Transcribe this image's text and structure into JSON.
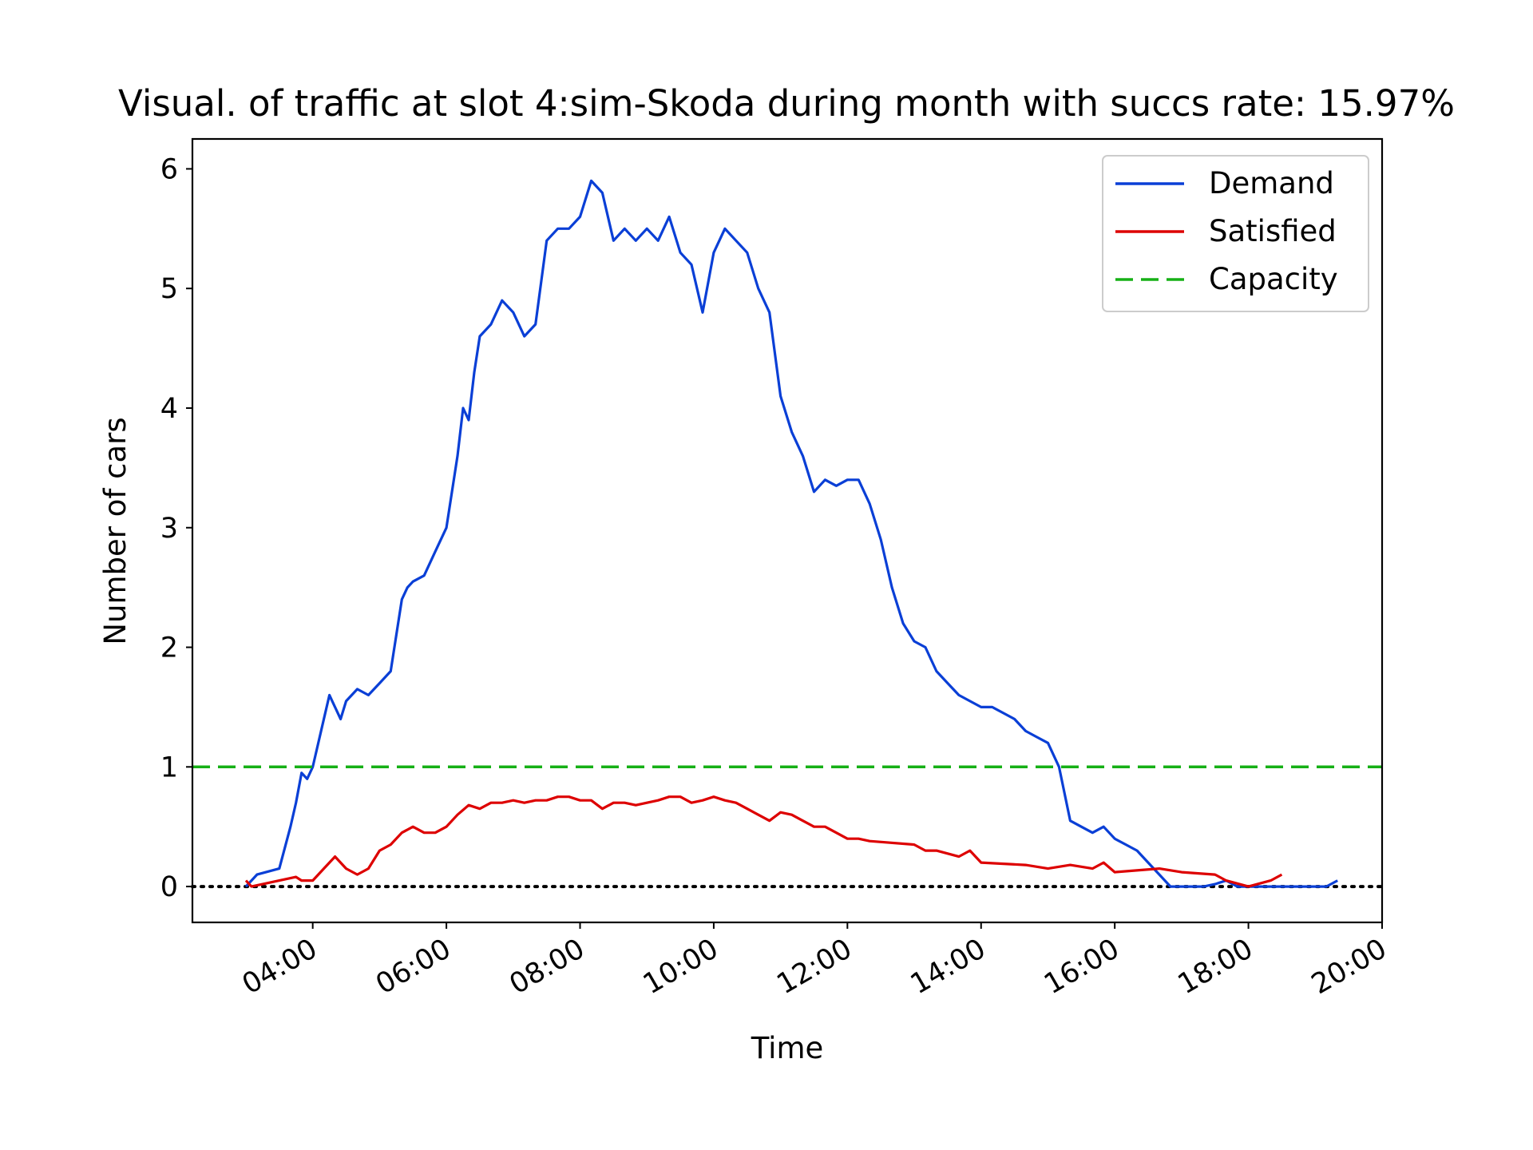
{
  "chart_data": {
    "type": "line",
    "title": "Visual. of traffic at slot 4:sim-Skoda during month with succs rate: 15.97%",
    "xlabel": "Time",
    "ylabel": "Number of cars",
    "x_ticks": [
      "04:00",
      "06:00",
      "08:00",
      "10:00",
      "12:00",
      "14:00",
      "16:00",
      "18:00",
      "20:00"
    ],
    "y_ticks": [
      0,
      1,
      2,
      3,
      4,
      5,
      6
    ],
    "xlim": [
      "02:12",
      "20:00"
    ],
    "ylim": [
      -0.3,
      6.25
    ],
    "grid": false,
    "legend_position": "upper right",
    "series": [
      {
        "name": "Demand",
        "color": "#0a3fd6",
        "style": "solid",
        "x": [
          "03:00",
          "03:10",
          "03:30",
          "03:40",
          "03:45",
          "03:50",
          "03:55",
          "04:00",
          "04:10",
          "04:15",
          "04:20",
          "04:25",
          "04:30",
          "04:40",
          "04:50",
          "05:00",
          "05:10",
          "05:20",
          "05:25",
          "05:30",
          "05:40",
          "05:50",
          "06:00",
          "06:10",
          "06:15",
          "06:20",
          "06:25",
          "06:30",
          "06:40",
          "06:50",
          "07:00",
          "07:10",
          "07:20",
          "07:30",
          "07:40",
          "07:50",
          "08:00",
          "08:10",
          "08:20",
          "08:30",
          "08:40",
          "08:50",
          "09:00",
          "09:10",
          "09:20",
          "09:30",
          "09:40",
          "09:50",
          "10:00",
          "10:10",
          "10:20",
          "10:30",
          "10:40",
          "10:50",
          "11:00",
          "11:10",
          "11:20",
          "11:30",
          "11:40",
          "11:50",
          "12:00",
          "12:10",
          "12:20",
          "12:30",
          "12:40",
          "12:50",
          "13:00",
          "13:10",
          "13:20",
          "13:30",
          "13:40",
          "13:50",
          "14:00",
          "14:10",
          "14:20",
          "14:30",
          "14:40",
          "14:50",
          "15:00",
          "15:10",
          "15:20",
          "15:30",
          "15:40",
          "15:50",
          "16:00",
          "16:10",
          "16:20",
          "16:30",
          "16:40",
          "16:50",
          "17:00",
          "17:10",
          "17:20",
          "17:30",
          "17:40",
          "17:50",
          "18:00",
          "18:10",
          "18:20",
          "18:30",
          "18:40",
          "18:50",
          "19:00",
          "19:10",
          "19:20"
        ],
        "values": [
          0.0,
          0.1,
          0.15,
          0.5,
          0.7,
          0.95,
          0.9,
          1.0,
          1.4,
          1.6,
          1.5,
          1.4,
          1.55,
          1.65,
          1.6,
          1.7,
          1.8,
          2.4,
          2.5,
          2.55,
          2.6,
          2.8,
          3.0,
          3.6,
          4.0,
          3.9,
          4.3,
          4.6,
          4.7,
          4.9,
          4.8,
          4.6,
          4.7,
          5.4,
          5.5,
          5.5,
          5.6,
          5.9,
          5.8,
          5.4,
          5.5,
          5.4,
          5.5,
          5.4,
          5.6,
          5.3,
          5.2,
          4.8,
          5.3,
          5.5,
          5.4,
          5.3,
          5.0,
          4.8,
          4.1,
          3.8,
          3.6,
          3.3,
          3.4,
          3.35,
          3.4,
          3.4,
          3.2,
          2.9,
          2.5,
          2.2,
          2.05,
          2.0,
          1.8,
          1.7,
          1.6,
          1.55,
          1.5,
          1.5,
          1.45,
          1.4,
          1.3,
          1.25,
          1.2,
          1.0,
          0.55,
          0.5,
          0.45,
          0.5,
          0.4,
          0.35,
          0.3,
          0.2,
          0.1,
          0.0,
          0.0,
          0.0,
          0.0,
          0.02,
          0.05,
          0.0,
          0.0,
          0.0,
          0.0,
          0.0,
          0.0,
          0.0,
          0.0,
          0.0,
          0.05
        ]
      },
      {
        "name": "Satisfied",
        "color": "#dd0000",
        "style": "solid",
        "x": [
          "03:00",
          "03:05",
          "03:15",
          "03:30",
          "03:45",
          "03:50",
          "04:00",
          "04:10",
          "04:20",
          "04:30",
          "04:40",
          "04:50",
          "05:00",
          "05:10",
          "05:20",
          "05:30",
          "05:40",
          "05:50",
          "06:00",
          "06:10",
          "06:20",
          "06:30",
          "06:40",
          "06:50",
          "07:00",
          "07:10",
          "07:20",
          "07:30",
          "07:40",
          "07:50",
          "08:00",
          "08:10",
          "08:20",
          "08:30",
          "08:40",
          "08:50",
          "09:00",
          "09:10",
          "09:20",
          "09:30",
          "09:40",
          "09:50",
          "10:00",
          "10:10",
          "10:20",
          "10:30",
          "10:40",
          "10:50",
          "11:00",
          "11:10",
          "11:20",
          "11:30",
          "11:40",
          "11:50",
          "12:00",
          "12:10",
          "12:20",
          "13:00",
          "13:10",
          "13:20",
          "13:40",
          "13:50",
          "14:00",
          "14:40",
          "15:00",
          "15:20",
          "15:40",
          "15:50",
          "16:00",
          "16:40",
          "17:00",
          "17:30",
          "17:40",
          "18:00",
          "18:20",
          "18:30"
        ],
        "values": [
          0.05,
          0.0,
          0.02,
          0.05,
          0.08,
          0.05,
          0.05,
          0.15,
          0.25,
          0.15,
          0.1,
          0.15,
          0.3,
          0.35,
          0.45,
          0.5,
          0.45,
          0.45,
          0.5,
          0.6,
          0.68,
          0.65,
          0.7,
          0.7,
          0.72,
          0.7,
          0.72,
          0.72,
          0.75,
          0.75,
          0.72,
          0.72,
          0.65,
          0.7,
          0.7,
          0.68,
          0.7,
          0.72,
          0.75,
          0.75,
          0.7,
          0.72,
          0.75,
          0.72,
          0.7,
          0.65,
          0.6,
          0.55,
          0.62,
          0.6,
          0.55,
          0.5,
          0.5,
          0.45,
          0.4,
          0.4,
          0.38,
          0.35,
          0.3,
          0.3,
          0.25,
          0.3,
          0.2,
          0.18,
          0.15,
          0.18,
          0.15,
          0.2,
          0.12,
          0.15,
          0.12,
          0.1,
          0.05,
          0.0,
          0.05,
          0.1
        ]
      },
      {
        "name": "Capacity",
        "color": "#16b016",
        "style": "dashed",
        "x": [
          "02:12",
          "20:00"
        ],
        "values": [
          1,
          1
        ]
      }
    ],
    "reference_line": {
      "y": 0,
      "style": "dotted",
      "color": "#000000"
    }
  }
}
